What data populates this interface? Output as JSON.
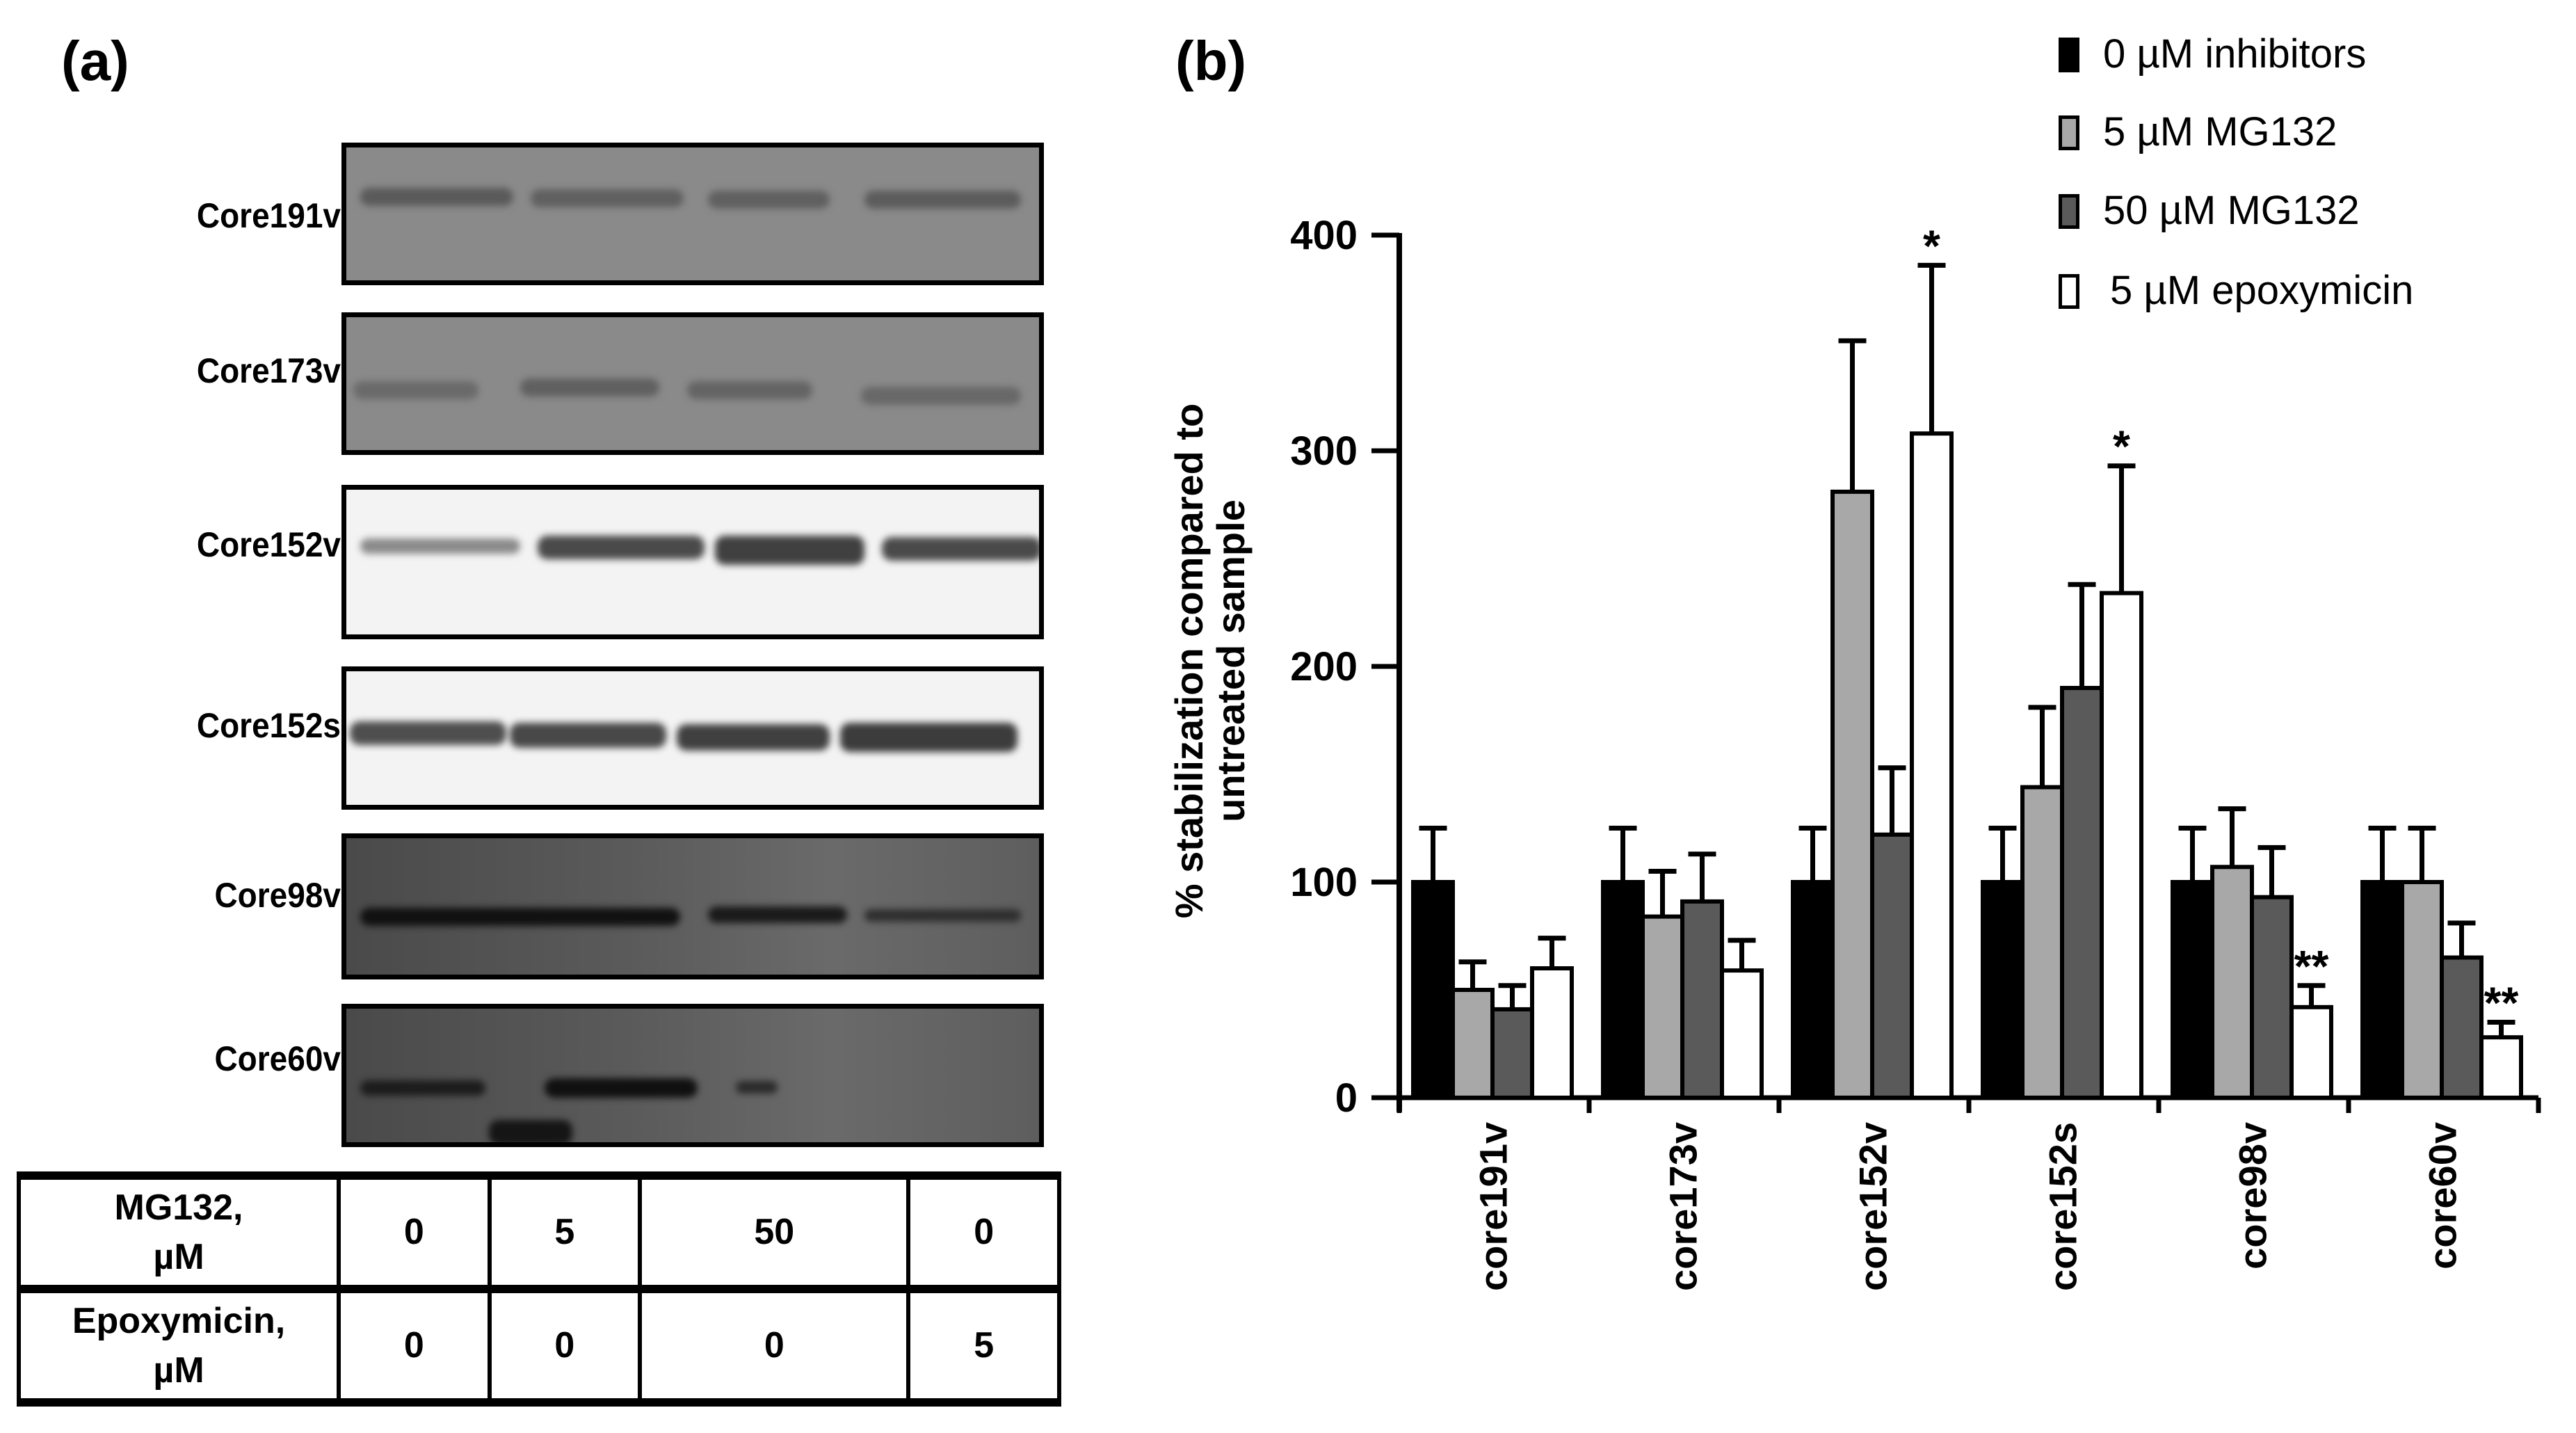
{
  "panel_a": {
    "letter": "(a)",
    "blots": [
      {
        "label": "Core191v",
        "style": "gray"
      },
      {
        "label": "Core173v",
        "style": "gray"
      },
      {
        "label": "Core152v",
        "style": "light"
      },
      {
        "label": "Core152s",
        "style": "light"
      },
      {
        "label": "Core98v",
        "style": "dark"
      },
      {
        "label": "Core60v",
        "style": "dark"
      }
    ],
    "table": {
      "rows": [
        {
          "header": [
            "MG132,",
            "µM"
          ],
          "values": [
            "0",
            "5",
            "50",
            "0"
          ]
        },
        {
          "header": [
            "Epoxymicin,",
            "µM"
          ],
          "values": [
            "0",
            "0",
            "0",
            "5"
          ]
        }
      ]
    }
  },
  "panel_b": {
    "letter": "(b)"
  },
  "chart_data": {
    "type": "bar",
    "title": "",
    "xlabel": "",
    "ylabel": "% stabilization compared to untreated sample",
    "ylabel_lines": [
      "% stabilization compared to",
      "untreated sample"
    ],
    "ylim": [
      0,
      400
    ],
    "yticks": [
      0,
      100,
      200,
      300,
      400
    ],
    "grid": false,
    "legend_position": "top-right",
    "categories": [
      "core191v",
      "core173v",
      "core152v",
      "core152s",
      "core98v",
      "core60v"
    ],
    "series": [
      {
        "name": "0 µM inhibitors",
        "color": "#000000",
        "values": [
          100,
          100,
          100,
          100,
          100,
          100
        ],
        "error_upper": [
          125,
          125,
          125,
          125,
          125,
          125
        ]
      },
      {
        "name": "5 µM MG132",
        "color": "#a8a8a8",
        "values": [
          50,
          84,
          281,
          144,
          107,
          100
        ],
        "error_upper": [
          63,
          105,
          351,
          181,
          134,
          125
        ]
      },
      {
        "name": "50 µM MG132",
        "color": "#5a5a5a",
        "values": [
          41,
          91,
          122,
          190,
          93,
          65
        ],
        "error_upper": [
          52,
          113,
          153,
          238,
          116,
          81
        ]
      },
      {
        "name": "5 µM epoxymicin",
        "color": "#ffffff",
        "values": [
          60,
          59,
          308,
          234,
          42,
          28
        ],
        "error_upper": [
          74,
          73,
          386,
          293,
          52,
          35
        ]
      }
    ],
    "annotations": [
      {
        "category": "core152v",
        "series": "5 µM epoxymicin",
        "text": "*"
      },
      {
        "category": "core152s",
        "series": "5 µM epoxymicin",
        "text": "*"
      },
      {
        "category": "core98v",
        "series": "5 µM epoxymicin",
        "text": "**"
      },
      {
        "category": "core60v",
        "series": "5 µM epoxymicin",
        "text": "**"
      }
    ]
  }
}
